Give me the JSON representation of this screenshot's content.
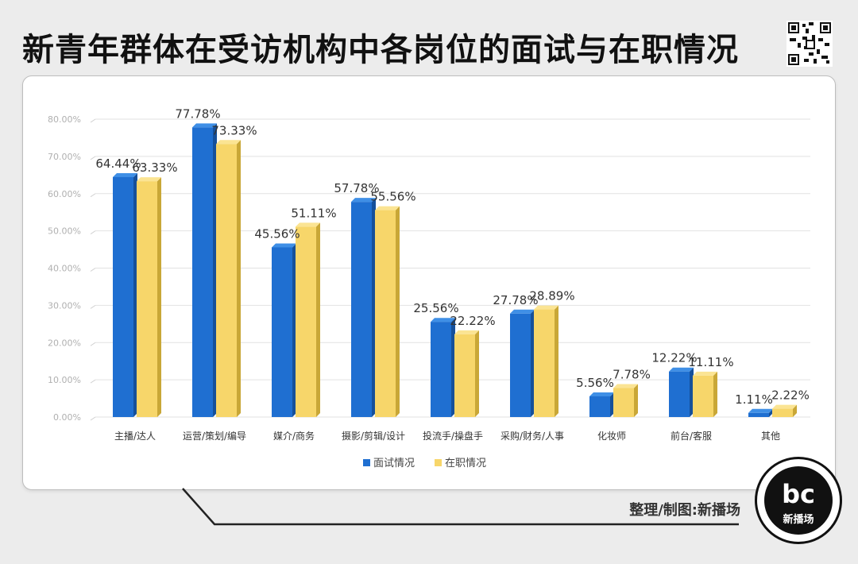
{
  "header": {
    "title": "新青年群体在受访机构中各岗位的面试与在职情况"
  },
  "footer": {
    "credit": "整理/制图:新播场"
  },
  "brand": {
    "logo_text": "bc",
    "name": "新播场"
  },
  "colors": {
    "interview": "#1f6fd1",
    "interview_dark": "#16509a",
    "interview_top": "#3f8fe6",
    "employed": "#f7d66a",
    "employed_dark": "#c9a737",
    "employed_top": "#fbe493"
  },
  "chart_data": {
    "type": "bar",
    "title": "",
    "xlabel": "",
    "ylabel": "",
    "ylim": [
      0,
      80
    ],
    "yticks": [
      "0.00%",
      "10.00%",
      "20.00%",
      "30.00%",
      "40.00%",
      "50.00%",
      "60.00%",
      "70.00%",
      "80.00%"
    ],
    "grid": true,
    "legend_position": "bottom",
    "categories": [
      "主播/达人",
      "运营/策划/编导",
      "媒介/商务",
      "摄影/剪辑/设计",
      "投流手/操盘手",
      "采购/财务/人事",
      "化妆师",
      "前台/客服",
      "其他"
    ],
    "series": [
      {
        "name": "面试情况",
        "values": [
          64.44,
          77.78,
          45.56,
          57.78,
          25.56,
          27.78,
          5.56,
          12.22,
          1.11
        ],
        "labels": [
          "64.44%",
          "77.78%",
          "45.56%",
          "57.78%",
          "25.56%",
          "27.78%",
          "5.56%",
          "12.22%",
          "1.11%"
        ]
      },
      {
        "name": "在职情况",
        "values": [
          63.33,
          73.33,
          51.11,
          55.56,
          22.22,
          28.89,
          7.78,
          11.11,
          2.22
        ],
        "labels": [
          "63.33%",
          "73.33%",
          "51.11%",
          "55.56%",
          "22.22%",
          "28.89%",
          "7.78%",
          "11.11%",
          "2.22%"
        ]
      }
    ]
  }
}
